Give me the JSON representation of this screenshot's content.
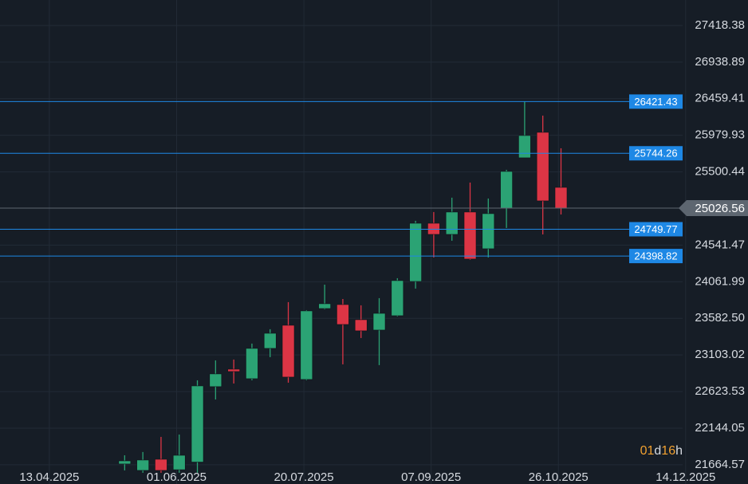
{
  "chart_data": {
    "type": "candlestick",
    "up_color": "#2ba374",
    "down_color": "#dc3545",
    "background": "#161d26",
    "grid": true,
    "ylim": [
      21413,
      27752
    ],
    "yticks": [
      27418.38,
      26938.89,
      26459.41,
      25979.93,
      25500.44,
      24541.47,
      24061.99,
      {
        "value": 23582.5,
        "label": "23582.50"
      },
      23103.02,
      22623.53,
      22144.05,
      21664.57
    ],
    "xlim": [
      "25.03.2025",
      "07.01.2026"
    ],
    "xticks": [
      "13.04.2025",
      "01.06.2025",
      "20.07.2025",
      "07.09.2025",
      "26.10.2025",
      "14.12.2025"
    ],
    "candles": {
      "x": [
        "12.05.2025",
        "19.05.2025",
        "26.05.2025",
        "02.06.2025",
        "09.06.2025",
        "16.06.2025",
        "23.06.2025",
        "30.06.2025",
        "07.07.2025",
        "14.07.2025",
        "21.07.2025",
        "28.07.2025",
        "04.08.2025",
        "11.08.2025",
        "18.08.2025",
        "25.08.2025",
        "01.09.2025",
        "08.09.2025",
        "15.09.2025",
        "22.09.2025",
        "29.09.2025",
        "06.10.2025",
        "13.10.2025",
        "20.10.2025",
        "27.10.2025"
      ],
      "open": [
        21675,
        21591,
        21737,
        21600,
        21700,
        22688,
        22917,
        22792,
        23189,
        23492,
        22782,
        23711,
        23763,
        23565,
        23429,
        23617,
        24066,
        24828,
        24682,
        24975,
        24494,
        25027,
        25685,
        26019,
        25298
      ],
      "high": [
        21789,
        21832,
        22030,
        22061,
        22771,
        23032,
        23043,
        23252,
        23440,
        23795,
        23690,
        24024,
        23836,
        23753,
        23847,
        24108,
        24860,
        24975,
        25163,
        25361,
        25152,
        25528,
        26421,
        26238,
        25810
      ],
      "low": [
        21591,
        21560,
        21560,
        21560,
        21560,
        22520,
        22729,
        22771,
        23074,
        22740,
        22771,
        23701,
        22980,
        23325,
        22970,
        23607,
        23972,
        24380,
        24599,
        24349,
        24380,
        24766,
        25685,
        24682,
        24943
      ],
      "close": [
        21716,
        21727,
        21591,
        21789,
        22698,
        22855,
        22886,
        23189,
        23387,
        22813,
        23680,
        23774,
        23502,
        23419,
        23648,
        24077,
        24828,
        24682,
        24975,
        24359,
        24954,
        25507,
        25977,
        25121,
        25026.56
      ]
    },
    "levels": [
      {
        "value": 26421.43,
        "color": "#1e88e5"
      },
      {
        "value": 25744.26,
        "color": "#1e88e5"
      },
      {
        "value": 24749.77,
        "color": "#1e88e5"
      },
      {
        "value": 24398.82,
        "color": "#1e88e5"
      }
    ],
    "current_price": {
      "value": 25026.56,
      "color": "#5d6670"
    },
    "countdown": [
      "01",
      "d",
      "16",
      "h"
    ]
  }
}
